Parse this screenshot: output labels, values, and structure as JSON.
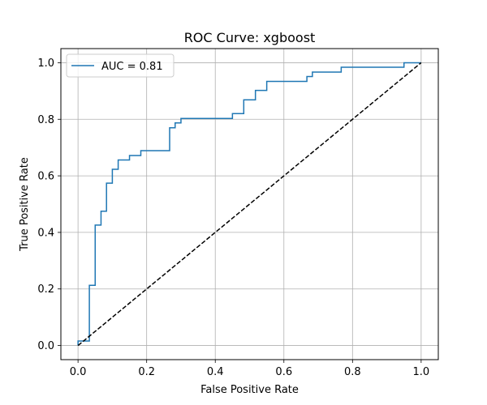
{
  "chart_data": {
    "type": "line",
    "title": "ROC Curve: xgboost",
    "xlabel": "False Positive Rate",
    "ylabel": "True Positive Rate",
    "xlim": [
      -0.05,
      1.05
    ],
    "ylim": [
      -0.05,
      1.05
    ],
    "grid": true,
    "legend_position": "upper left",
    "x_ticks": [
      "0.0",
      "0.2",
      "0.4",
      "0.6",
      "0.8",
      "1.0"
    ],
    "y_ticks": [
      "0.0",
      "0.2",
      "0.4",
      "0.6",
      "0.8",
      "1.0"
    ],
    "series": [
      {
        "name": "AUC = 0.81",
        "color": "#1f77b4",
        "style": "step",
        "x": [
          0.0,
          0.0,
          0.033,
          0.033,
          0.05,
          0.05,
          0.067,
          0.067,
          0.083,
          0.083,
          0.1,
          0.1,
          0.117,
          0.117,
          0.15,
          0.15,
          0.183,
          0.183,
          0.267,
          0.267,
          0.283,
          0.283,
          0.3,
          0.3,
          0.45,
          0.45,
          0.483,
          0.483,
          0.517,
          0.517,
          0.55,
          0.55,
          0.667,
          0.667,
          0.683,
          0.683,
          0.767,
          0.767,
          0.95,
          0.95,
          1.0
        ],
        "y": [
          0.0,
          0.016,
          0.016,
          0.213,
          0.213,
          0.426,
          0.426,
          0.475,
          0.475,
          0.574,
          0.574,
          0.623,
          0.623,
          0.656,
          0.656,
          0.672,
          0.672,
          0.689,
          0.689,
          0.77,
          0.77,
          0.787,
          0.787,
          0.803,
          0.803,
          0.82,
          0.82,
          0.869,
          0.869,
          0.902,
          0.902,
          0.934,
          0.934,
          0.951,
          0.951,
          0.967,
          0.967,
          0.984,
          0.984,
          1.0,
          1.0
        ]
      },
      {
        "name": "",
        "color": "#000000",
        "style": "dashed",
        "x": [
          0.0,
          1.0
        ],
        "y": [
          0.0,
          1.0
        ]
      }
    ]
  }
}
